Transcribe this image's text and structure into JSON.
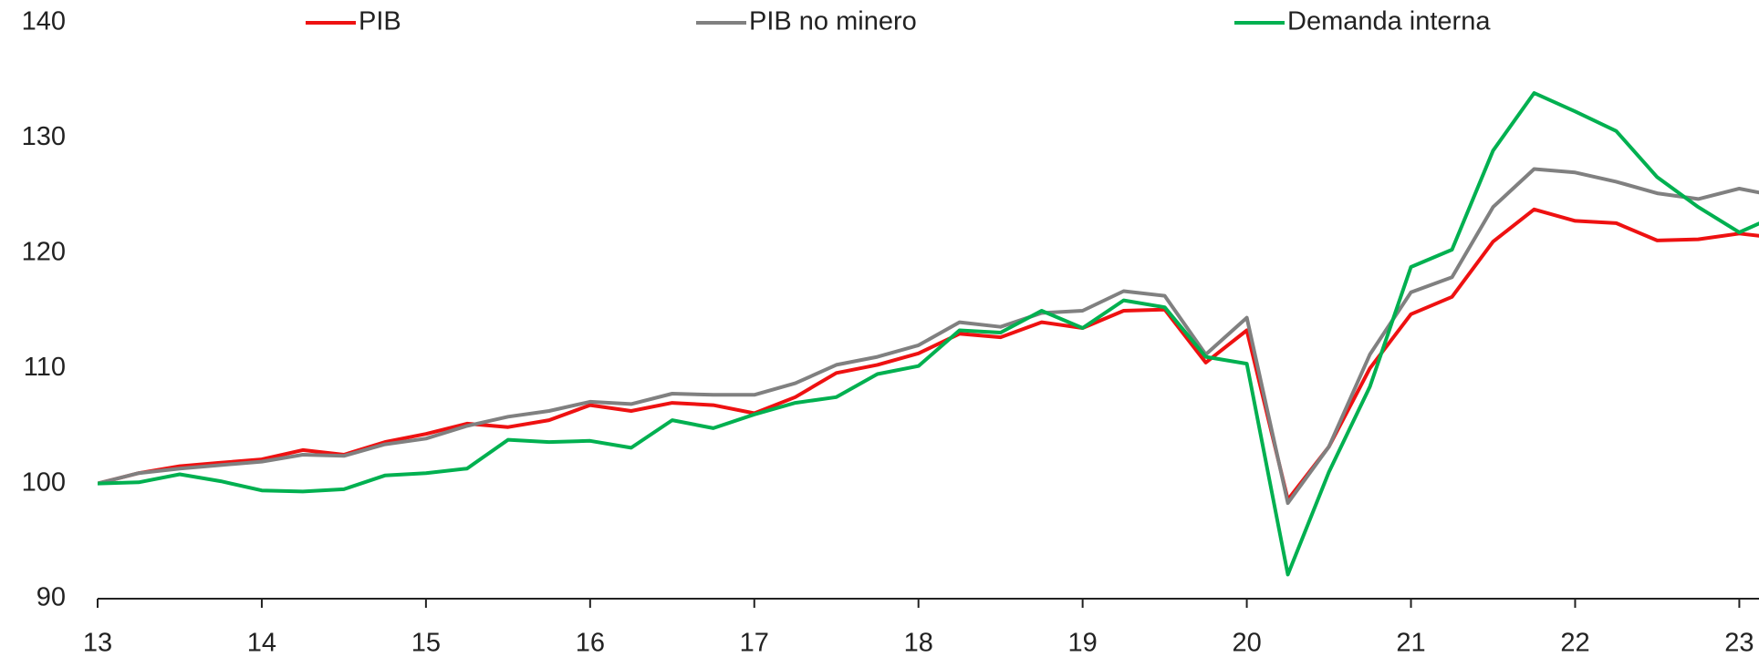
{
  "chart_data": {
    "type": "line",
    "x": [
      13,
      13.25,
      13.5,
      13.75,
      14,
      14.25,
      14.5,
      14.75,
      15,
      15.25,
      15.5,
      15.75,
      16,
      16.25,
      16.5,
      16.75,
      17,
      17.25,
      17.5,
      17.75,
      18,
      18.25,
      18.5,
      18.75,
      19,
      19.25,
      19.5,
      19.75,
      20,
      20.25,
      20.5,
      20.75,
      21,
      21.25,
      21.5,
      21.75,
      22,
      22.25,
      22.5,
      22.75,
      23,
      23.25
    ],
    "series": [
      {
        "name": "PIB",
        "color": "#ee1111",
        "values": [
          100,
          100.9,
          101.5,
          101.8,
          102.1,
          102.9,
          102.5,
          103.6,
          104.3,
          105.2,
          104.9,
          105.5,
          106.8,
          106.3,
          107.0,
          106.8,
          106.1,
          107.5,
          109.6,
          110.3,
          111.3,
          113.0,
          112.7,
          114.0,
          113.5,
          115.0,
          115.1,
          110.5,
          113.3,
          98.6,
          103.2,
          110.0,
          114.7,
          116.2,
          121.0,
          123.8,
          122.8,
          122.6,
          121.1,
          121.2,
          121.7,
          121.3
        ]
      },
      {
        "name": "PIB no minero",
        "color": "#808080",
        "values": [
          100,
          100.9,
          101.3,
          101.6,
          101.9,
          102.5,
          102.4,
          103.4,
          103.9,
          105.0,
          105.8,
          106.3,
          107.1,
          106.9,
          107.8,
          107.7,
          107.7,
          108.7,
          110.3,
          111.0,
          112.0,
          114.0,
          113.6,
          114.8,
          115.0,
          116.7,
          116.3,
          111.2,
          114.4,
          98.3,
          103.2,
          111.2,
          116.6,
          117.9,
          124.0,
          127.3,
          127.0,
          126.2,
          125.2,
          124.7,
          125.6,
          124.9
        ]
      },
      {
        "name": "Demanda interna",
        "color": "#00b050",
        "values": [
          100,
          100.1,
          100.8,
          100.2,
          99.4,
          99.3,
          99.5,
          100.7,
          100.9,
          101.3,
          103.8,
          103.6,
          103.7,
          103.1,
          105.5,
          104.8,
          106.0,
          107.0,
          107.5,
          109.5,
          110.2,
          113.3,
          113.1,
          115.0,
          113.5,
          115.9,
          115.3,
          111.0,
          110.4,
          92.1,
          101.0,
          108.4,
          118.8,
          120.3,
          128.9,
          133.9,
          132.3,
          130.6,
          126.6,
          124.0,
          121.8,
          123.4
        ]
      }
    ],
    "xlim": [
      13,
      23.12
    ],
    "xticks": [
      13,
      14,
      15,
      16,
      17,
      18,
      19,
      20,
      21,
      22,
      23
    ],
    "ylim": [
      90,
      140
    ],
    "yticks": [
      90,
      100,
      110,
      120,
      130,
      140
    ],
    "grid": false
  }
}
